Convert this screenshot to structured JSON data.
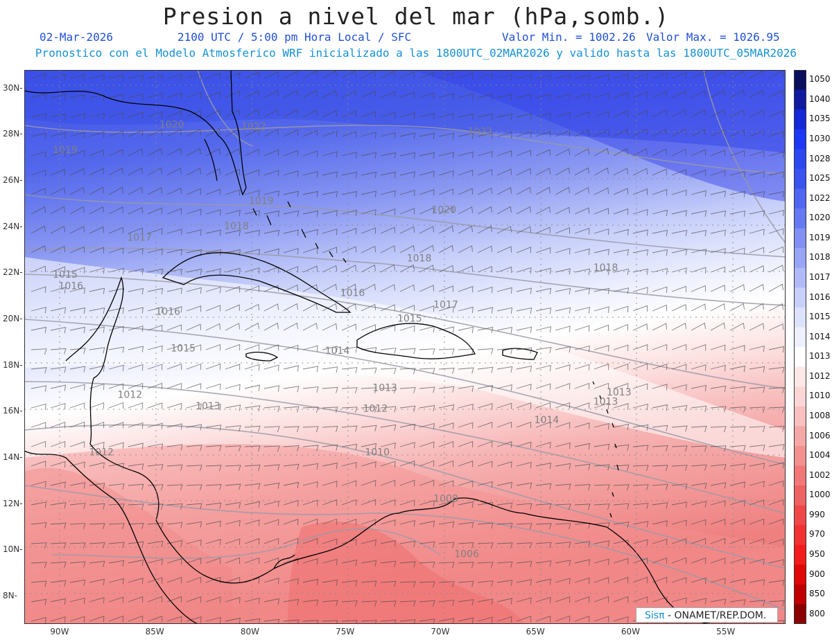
{
  "title": "Presion a nivel del mar (hPa,somb.)",
  "subtitle": {
    "date": "02-Mar-2026",
    "time": "2100 UTC / 5:00 pm Hora Local / SFC",
    "min": "Valor Min. = 1002.26",
    "max": "Valor Max. = 1026.95"
  },
  "forecast_line": "Pronostico con el Modelo Atmosferico WRF inicializado a las 1800UTC_02MAR2026 y valido hasta las  1800UTC_05MAR2026",
  "lat_ticks": [
    "30N",
    "28N",
    "26N",
    "24N",
    "22N",
    "20N",
    "18N",
    "16N",
    "14N",
    "12N",
    "10N",
    "8N"
  ],
  "lon_ticks": [
    "90W",
    "85W",
    "80W",
    "75W",
    "70W",
    "65W",
    "60W",
    "55W"
  ],
  "colorbar": {
    "labels": [
      "1050",
      "1040",
      "1035",
      "1030",
      "1028",
      "1025",
      "1022",
      "1020",
      "1019",
      "1018",
      "1017",
      "1016",
      "1015",
      "1014",
      "1013",
      "1012",
      "1010",
      "1008",
      "1006",
      "1004",
      "1002",
      "1000",
      "990",
      "970",
      "950",
      "900",
      "850",
      "800"
    ],
    "colors": [
      "#0c0f5c",
      "#101ba0",
      "#1428d8",
      "#1c38f4",
      "#2c48f0",
      "#3b54ef",
      "#5066f0",
      "#6678f2",
      "#8090f4",
      "#98a4f6",
      "#b0baf8",
      "#c8d0fa",
      "#dde2fc",
      "#eef0fe",
      "#ffffff",
      "#fde8e8",
      "#fcd6d6",
      "#f8c0c0",
      "#f6a8a8",
      "#f39090",
      "#f07878",
      "#ed6262",
      "#f04848",
      "#f23232",
      "#f21c1c",
      "#e00808",
      "#c00000",
      "#8a0000"
    ]
  },
  "isobar_labels": [
    {
      "text": "1022",
      "lat": 28.2,
      "lon": -80.4
    },
    {
      "text": "1022",
      "lat": 28.0,
      "lon": -68.5
    },
    {
      "text": "1020",
      "lat": 28.3,
      "lon": -84.7
    },
    {
      "text": "1019",
      "lat": 27.2,
      "lon": -90.3
    },
    {
      "text": "1020",
      "lat": 24.6,
      "lon": -70.4
    },
    {
      "text": "1019",
      "lat": 25.0,
      "lon": -80.0
    },
    {
      "text": "1018",
      "lat": 23.9,
      "lon": -81.3
    },
    {
      "text": "1017",
      "lat": 23.4,
      "lon": -86.4
    },
    {
      "text": "1018",
      "lat": 22.5,
      "lon": -71.7
    },
    {
      "text": "1018",
      "lat": 22.1,
      "lon": -61.9
    },
    {
      "text": "1015",
      "lat": 21.8,
      "lon": -90.3
    },
    {
      "text": "1016",
      "lat": 21.3,
      "lon": -90.0
    },
    {
      "text": "1016",
      "lat": 21.0,
      "lon": -75.2
    },
    {
      "text": "1017",
      "lat": 20.5,
      "lon": -70.3
    },
    {
      "text": "1015",
      "lat": 19.9,
      "lon": -72.2
    },
    {
      "text": "1016",
      "lat": 20.2,
      "lon": -84.9
    },
    {
      "text": "1015",
      "lat": 18.6,
      "lon": -84.1
    },
    {
      "text": "1014",
      "lat": 18.5,
      "lon": -76.0
    },
    {
      "text": "1013",
      "lat": 16.9,
      "lon": -73.5
    },
    {
      "text": "1013",
      "lat": 16.7,
      "lon": -61.2
    },
    {
      "text": "1013",
      "lat": 16.3,
      "lon": -61.9
    },
    {
      "text": "1012",
      "lat": 16.6,
      "lon": -86.9
    },
    {
      "text": "1013",
      "lat": 16.1,
      "lon": -82.8
    },
    {
      "text": "1012",
      "lat": 16.0,
      "lon": -74.0
    },
    {
      "text": "1014",
      "lat": 15.5,
      "lon": -65.0
    },
    {
      "text": "1012",
      "lat": 14.1,
      "lon": -88.4
    },
    {
      "text": "1010",
      "lat": 14.1,
      "lon": -73.9
    },
    {
      "text": "1008",
      "lat": 12.1,
      "lon": -70.3
    },
    {
      "text": "1006",
      "lat": 9.7,
      "lon": -69.2
    }
  ],
  "credit": {
    "brand": "Sisπ",
    "rest": " - ONAMET/REP.DOM."
  }
}
